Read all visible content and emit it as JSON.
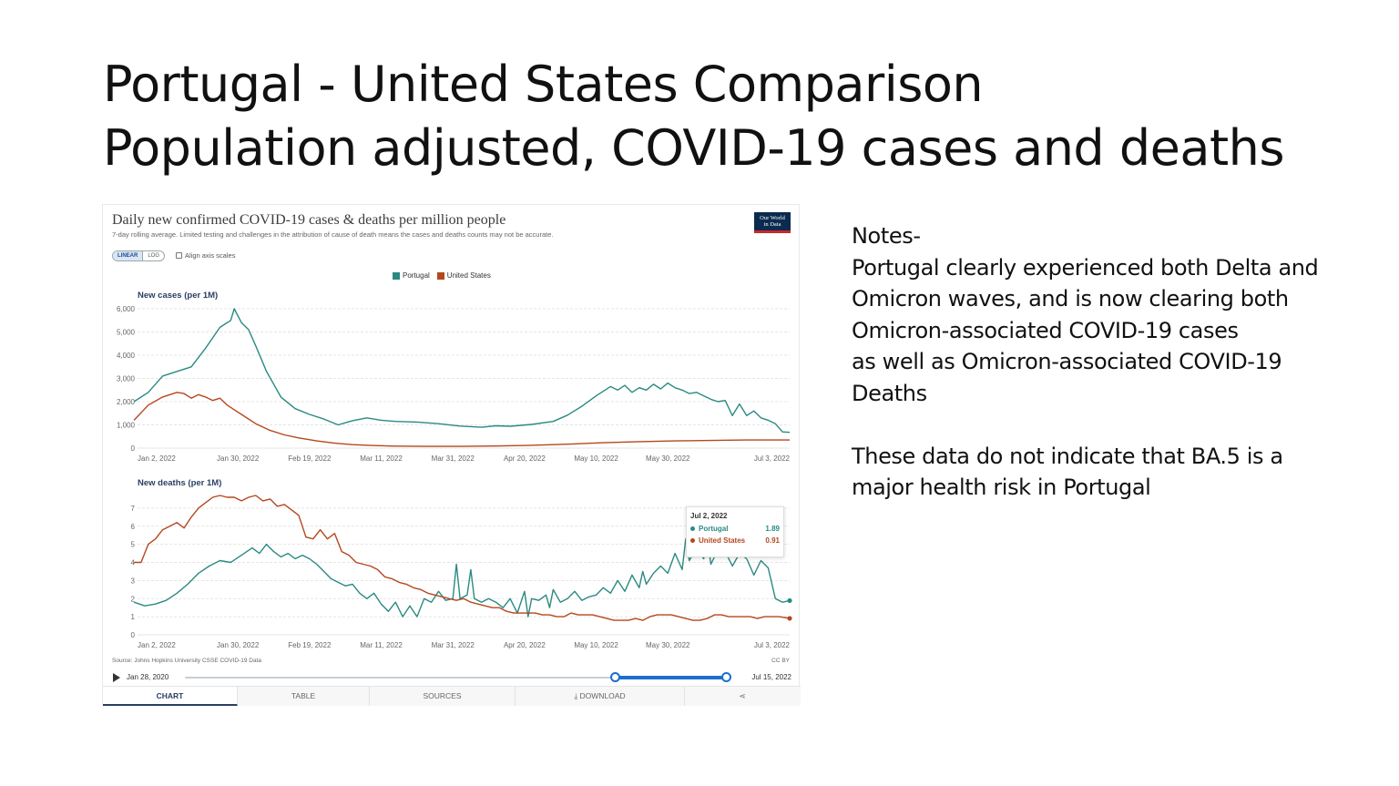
{
  "slide": {
    "title_line1": "Portugal - United States Comparison",
    "title_line2": "Population adjusted, COVID-19 cases and deaths"
  },
  "chart_header": {
    "title": "Daily new confirmed COVID-19 cases & deaths per million people",
    "subtitle": "7-day rolling average. Limited testing and challenges in the attribution of cause of death means the cases and deaths counts may not be accurate.",
    "logo_line1": "Our World",
    "logo_line2": "in Data"
  },
  "controls": {
    "linear_label": "LINEAR",
    "log_label": "LOG",
    "align_label": "Align axis scales"
  },
  "colors": {
    "portugal": "#2a8a82",
    "united_states": "#b5471e",
    "grid": "#dddddd",
    "axis_text": "#666666",
    "panel_title": "#2b3e63"
  },
  "chart_data": [
    {
      "type": "line",
      "title": "New cases (per 1M)",
      "x_tick_labels": [
        "Jan 2, 2022",
        "Jan 30, 2022",
        "Feb 19, 2022",
        "Mar 11, 2022",
        "Mar 31, 2022",
        "Apr 20, 2022",
        "May 10, 2022",
        "May 30, 2022",
        "Jul 3, 2022"
      ],
      "x_tick_days": [
        0,
        28,
        48,
        68,
        88,
        108,
        128,
        148,
        182
      ],
      "x_range_days": [
        0,
        182
      ],
      "y_ticks": [
        0,
        1000,
        2000,
        3000,
        4000,
        5000,
        6000
      ],
      "y_tick_labels": [
        "0",
        "1,000",
        "2,000",
        "3,000",
        "4,000",
        "5,000",
        "6,000"
      ],
      "ylim": [
        0,
        6000
      ],
      "grid": true,
      "legend": "top-center",
      "series": [
        {
          "name": "Portugal",
          "x": [
            -1,
            3,
            7,
            11,
            15,
            19,
            23,
            26,
            27,
            29,
            31,
            33,
            36,
            40,
            44,
            48,
            52,
            56,
            60,
            64,
            68,
            72,
            78,
            84,
            90,
            96,
            100,
            104,
            110,
            116,
            120,
            124,
            128,
            132,
            134,
            136,
            138,
            140,
            142,
            144,
            146,
            148,
            150,
            152,
            154,
            156,
            158,
            160,
            162,
            164,
            166,
            168,
            170,
            172,
            174,
            176,
            178,
            180,
            182
          ],
          "y": [
            2000,
            2400,
            3100,
            3300,
            3500,
            4300,
            5200,
            5500,
            6000,
            5400,
            5100,
            4400,
            3300,
            2200,
            1700,
            1450,
            1250,
            1000,
            1180,
            1300,
            1200,
            1150,
            1120,
            1050,
            950,
            900,
            960,
            940,
            1020,
            1150,
            1420,
            1800,
            2250,
            2650,
            2500,
            2700,
            2400,
            2600,
            2500,
            2750,
            2550,
            2800,
            2600,
            2500,
            2350,
            2400,
            2250,
            2100,
            2000,
            2050,
            1400,
            1900,
            1400,
            1600,
            1300,
            1200,
            1050,
            700,
            680
          ]
        },
        {
          "name": "United States",
          "x": [
            -1,
            3,
            7,
            11,
            13,
            15,
            17,
            19,
            21,
            23,
            25,
            27,
            29,
            33,
            37,
            41,
            45,
            50,
            55,
            60,
            66,
            72,
            80,
            90,
            100,
            110,
            120,
            130,
            140,
            150,
            160,
            170,
            182
          ],
          "y": [
            1200,
            1850,
            2200,
            2400,
            2350,
            2150,
            2300,
            2200,
            2050,
            2150,
            1850,
            1650,
            1450,
            1050,
            760,
            570,
            440,
            310,
            210,
            150,
            110,
            85,
            75,
            75,
            90,
            120,
            170,
            230,
            280,
            310,
            330,
            350,
            350
          ]
        }
      ]
    },
    {
      "type": "line",
      "title": "New deaths (per 1M)",
      "x_tick_labels": [
        "Jan 2, 2022",
        "Jan 30, 2022",
        "Feb 19, 2022",
        "Mar 11, 2022",
        "Mar 31, 2022",
        "Apr 20, 2022",
        "May 10, 2022",
        "May 30, 2022",
        "Jul 3, 2022"
      ],
      "x_tick_days": [
        0,
        28,
        48,
        68,
        88,
        108,
        128,
        148,
        182
      ],
      "x_range_days": [
        0,
        182
      ],
      "y_ticks": [
        0,
        1,
        2,
        3,
        4,
        5,
        6,
        7
      ],
      "y_tick_labels": [
        "0",
        "1",
        "2",
        "3",
        "4",
        "5",
        "6",
        "7"
      ],
      "ylim": [
        0,
        8
      ],
      "grid": true,
      "series": [
        {
          "name": "Portugal",
          "x": [
            -1,
            2,
            5,
            8,
            11,
            14,
            17,
            20,
            23,
            26,
            29,
            32,
            34,
            36,
            38,
            40,
            42,
            44,
            46,
            48,
            50,
            52,
            54,
            56,
            58,
            60,
            62,
            64,
            66,
            68,
            70,
            72,
            74,
            76,
            78,
            80,
            82,
            84,
            86,
            88,
            89,
            90,
            92,
            93,
            94,
            96,
            98,
            100,
            102,
            104,
            106,
            108,
            109,
            110,
            112,
            114,
            115,
            116,
            118,
            120,
            122,
            124,
            126,
            128,
            130,
            132,
            134,
            136,
            138,
            140,
            141,
            142,
            144,
            146,
            148,
            150,
            152,
            153,
            154,
            156,
            158,
            159,
            160,
            162,
            164,
            166,
            168,
            170,
            172,
            174,
            176,
            178,
            180,
            182
          ],
          "y": [
            1.8,
            1.6,
            1.7,
            1.9,
            2.3,
            2.8,
            3.4,
            3.8,
            4.1,
            4.0,
            4.4,
            4.8,
            4.5,
            5.0,
            4.6,
            4.3,
            4.5,
            4.2,
            4.4,
            4.2,
            3.9,
            3.5,
            3.1,
            2.9,
            2.7,
            2.8,
            2.3,
            2.0,
            2.3,
            1.7,
            1.3,
            1.8,
            1.0,
            1.6,
            1.0,
            2.0,
            1.8,
            2.4,
            1.9,
            2.0,
            3.9,
            2.0,
            2.2,
            3.6,
            2.0,
            1.8,
            2.0,
            1.8,
            1.5,
            2.0,
            1.2,
            2.4,
            1.0,
            2.0,
            1.9,
            2.2,
            1.5,
            2.5,
            1.8,
            2.0,
            2.4,
            1.9,
            2.1,
            2.2,
            2.6,
            2.3,
            3.0,
            2.4,
            3.3,
            2.6,
            3.5,
            2.8,
            3.4,
            3.8,
            3.4,
            4.5,
            3.6,
            5.3,
            4.1,
            4.8,
            4.2,
            5.3,
            3.9,
            4.7,
            4.6,
            3.8,
            4.5,
            4.2,
            3.3,
            4.1,
            3.7,
            2.0,
            1.8,
            1.89
          ]
        },
        {
          "name": "United States",
          "x": [
            -1,
            1,
            3,
            5,
            7,
            9,
            11,
            13,
            15,
            17,
            19,
            21,
            23,
            25,
            27,
            29,
            31,
            33,
            35,
            37,
            39,
            41,
            43,
            45,
            47,
            49,
            51,
            53,
            55,
            57,
            59,
            61,
            63,
            65,
            67,
            69,
            71,
            73,
            75,
            77,
            79,
            81,
            83,
            85,
            87,
            89,
            91,
            93,
            95,
            97,
            99,
            101,
            103,
            105,
            107,
            109,
            111,
            113,
            115,
            117,
            119,
            121,
            123,
            125,
            127,
            129,
            131,
            133,
            135,
            137,
            139,
            141,
            143,
            145,
            147,
            149,
            151,
            153,
            155,
            157,
            159,
            161,
            163,
            165,
            167,
            169,
            171,
            173,
            175,
            177,
            179,
            182
          ],
          "y": [
            4.0,
            4.0,
            5.0,
            5.3,
            5.8,
            6.0,
            6.2,
            5.9,
            6.5,
            7.0,
            7.3,
            7.6,
            7.7,
            7.6,
            7.6,
            7.4,
            7.6,
            7.7,
            7.4,
            7.5,
            7.1,
            7.2,
            6.9,
            6.6,
            5.4,
            5.3,
            5.8,
            5.3,
            5.6,
            4.6,
            4.4,
            4.0,
            3.9,
            3.8,
            3.6,
            3.2,
            3.1,
            2.9,
            2.8,
            2.6,
            2.5,
            2.3,
            2.2,
            2.1,
            2.0,
            1.9,
            2.0,
            1.8,
            1.7,
            1.6,
            1.5,
            1.5,
            1.3,
            1.2,
            1.2,
            1.2,
            1.2,
            1.1,
            1.1,
            1.0,
            1.0,
            1.2,
            1.1,
            1.1,
            1.1,
            1.0,
            0.9,
            0.8,
            0.8,
            0.8,
            0.9,
            0.8,
            1.0,
            1.1,
            1.1,
            1.1,
            1.0,
            0.9,
            0.8,
            0.8,
            0.9,
            1.1,
            1.1,
            1.0,
            1.0,
            1.0,
            1.0,
            0.9,
            1.0,
            1.0,
            1.0,
            0.91
          ]
        }
      ]
    }
  ],
  "tooltip": {
    "date": "Jul 2, 2022",
    "portugal_label": "Portugal",
    "portugal_value": "1.89",
    "us_label": "United States",
    "us_value": "0.91"
  },
  "footer": {
    "source": "Source: Johns Hopkins University CSSE COVID-19 Data",
    "license": "CC BY",
    "timeline_start": "Jan 28, 2020",
    "timeline_end": "Jul 15, 2022",
    "tabs": [
      "CHART",
      "TABLE",
      "SOURCES",
      "DOWNLOAD",
      "⋖"
    ]
  },
  "notes": {
    "line1": "Notes-",
    "line2": "Portugal clearly experienced both Delta and",
    "line3": "Omicron waves, and is now clearing both",
    "line4": "Omicron-associated COVID-19 cases",
    "line5": "as well as Omicron-associated COVID-19",
    "line6": "Deaths",
    "line7": "These data do not indicate that BA.5 is a",
    "line8": "major health risk in Portugal"
  }
}
